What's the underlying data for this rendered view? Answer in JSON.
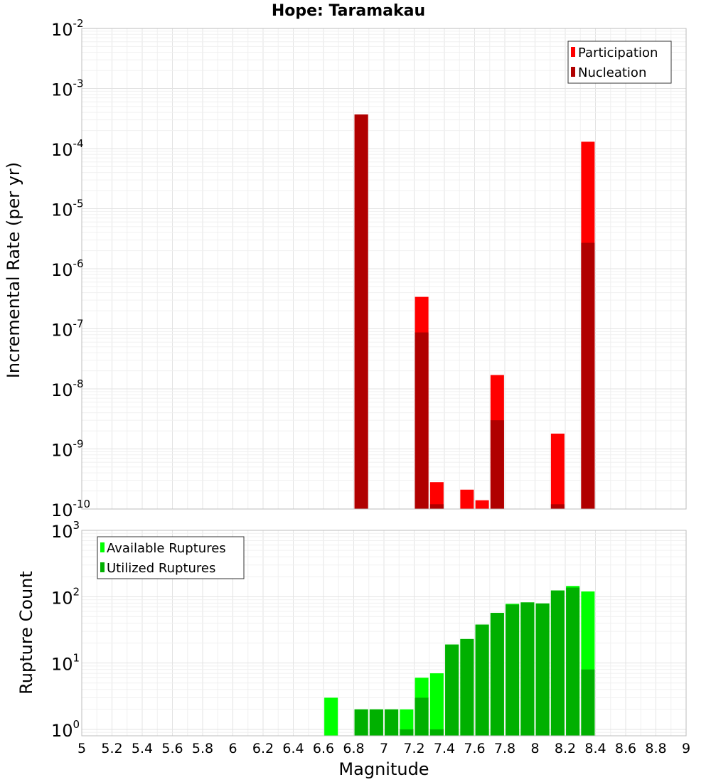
{
  "chart_data": [
    {
      "type": "bar",
      "title": "Hope: Taramakau",
      "ylabel": "Incremental Rate (per yr)",
      "yscale": "log",
      "ylim": [
        1e-10,
        0.01
      ],
      "xlim": [
        5,
        9
      ],
      "legend_position": "top-right",
      "grid": true,
      "series": [
        {
          "name": "Participation",
          "color": "#ff0000",
          "x": [
            6.85,
            7.25,
            7.35,
            7.55,
            7.65,
            7.75,
            8.15,
            8.35
          ],
          "values": [
            0.00037,
            3.4e-07,
            2.8e-10,
            2.1e-10,
            1.4e-10,
            1.7e-08,
            1.8e-09,
            0.00013
          ]
        },
        {
          "name": "Nucleation",
          "color": "#b00000",
          "x": [
            6.85,
            7.25,
            7.35,
            7.75,
            8.15,
            8.35
          ],
          "values": [
            0.00037,
            8.7e-08,
            1.2e-10,
            3e-09,
            1.2e-10,
            2.7e-06
          ]
        }
      ]
    },
    {
      "type": "bar",
      "xlabel": "Magnitude",
      "ylabel": "Rupture Count",
      "yscale": "log",
      "ylim": [
        0.8,
        1000
      ],
      "xlim": [
        5,
        9
      ],
      "legend_position": "top-left",
      "grid": true,
      "series": [
        {
          "name": "Available Ruptures",
          "color": "#00ff00",
          "x": [
            6.65,
            6.85,
            6.95,
            7.05,
            7.15,
            7.25,
            7.35,
            7.45,
            7.55,
            7.65,
            7.75,
            7.85,
            7.95,
            8.05,
            8.15,
            8.25,
            8.35
          ],
          "values": [
            3,
            2,
            2,
            2,
            2,
            6,
            7,
            19,
            23,
            38,
            57,
            78,
            82,
            79,
            124,
            145,
            120
          ]
        },
        {
          "name": "Utilized Ruptures",
          "color": "#00b000",
          "x": [
            6.85,
            6.95,
            7.05,
            7.15,
            7.25,
            7.35,
            7.45,
            7.55,
            7.65,
            7.75,
            7.85,
            7.95,
            8.05,
            8.15,
            8.25,
            8.35
          ],
          "values": [
            2,
            2,
            2,
            1,
            3,
            1,
            19,
            23,
            38,
            57,
            76,
            82,
            79,
            124,
            137,
            8
          ]
        }
      ]
    }
  ],
  "x_ticks": [
    "5",
    "5.2",
    "5.4",
    "5.6",
    "5.8",
    "6",
    "6.2",
    "6.4",
    "6.6",
    "6.8",
    "7",
    "7.2",
    "7.4",
    "7.6",
    "7.8",
    "8",
    "8.2",
    "8.4",
    "8.6",
    "8.8",
    "9"
  ],
  "top_y_ticks": [
    {
      "base": "10",
      "exp": "-2"
    },
    {
      "base": "10",
      "exp": "-3"
    },
    {
      "base": "10",
      "exp": "-4"
    },
    {
      "base": "10",
      "exp": "-5"
    },
    {
      "base": "10",
      "exp": "-6"
    },
    {
      "base": "10",
      "exp": "-7"
    },
    {
      "base": "10",
      "exp": "-8"
    },
    {
      "base": "10",
      "exp": "-9"
    },
    {
      "base": "10",
      "exp": "-10"
    }
  ],
  "bottom_y_ticks": [
    {
      "base": "10",
      "exp": "3"
    },
    {
      "base": "10",
      "exp": "2"
    },
    {
      "base": "10",
      "exp": "1"
    },
    {
      "base": "10",
      "exp": "0"
    }
  ]
}
